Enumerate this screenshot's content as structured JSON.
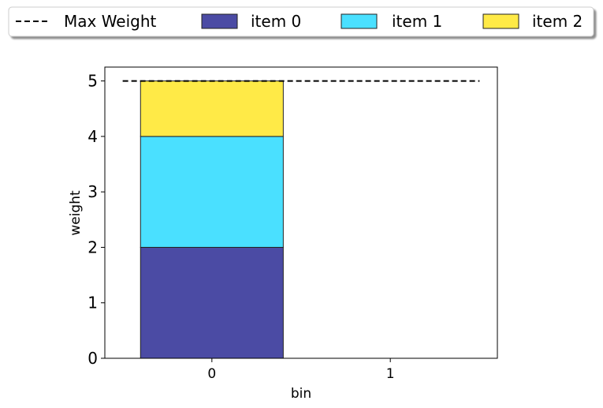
{
  "chart_data": {
    "type": "bar",
    "stacked": true,
    "categories": [
      "0",
      "1"
    ],
    "series": [
      {
        "name": "item 0",
        "values": [
          2,
          0
        ],
        "color": "#4b4ba4"
      },
      {
        "name": "item 1",
        "values": [
          2,
          0
        ],
        "color": "#4ae0ff"
      },
      {
        "name": "item 2",
        "values": [
          1,
          0
        ],
        "color": "#ffea47"
      }
    ],
    "max_weight": {
      "name": "Max Weight",
      "value": 5
    },
    "xlabel": "bin",
    "ylabel": "weight",
    "ylim": [
      0,
      5.25
    ],
    "yticks": [
      0,
      1,
      2,
      3,
      4,
      5
    ],
    "grid": false,
    "legend": "top, above plot, single row"
  }
}
